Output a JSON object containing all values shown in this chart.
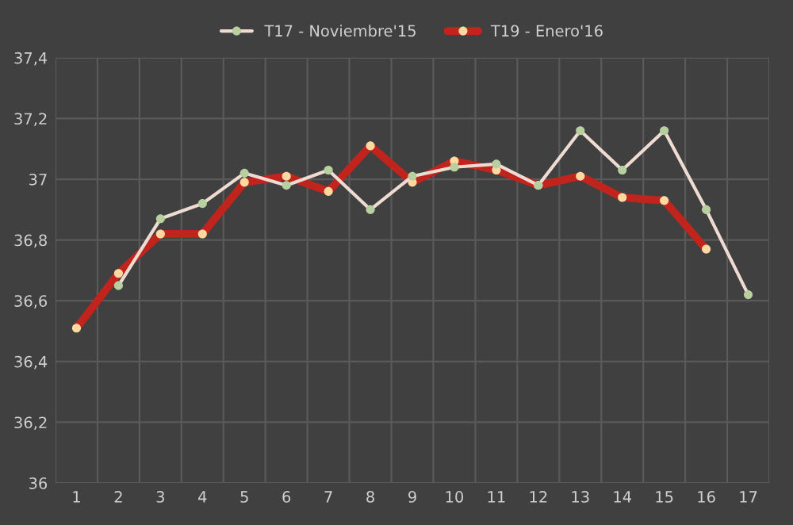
{
  "chart_data": {
    "type": "line",
    "categories": [
      "1",
      "2",
      "3",
      "4",
      "5",
      "6",
      "7",
      "8",
      "9",
      "10",
      "11",
      "12",
      "13",
      "14",
      "15",
      "16",
      "17"
    ],
    "series": [
      {
        "name": "T17 - Noviembre'15",
        "color": "#eedcd2",
        "values": [
          null,
          36.65,
          36.87,
          36.92,
          37.02,
          36.98,
          37.03,
          36.9,
          37.01,
          37.04,
          37.05,
          36.98,
          37.16,
          37.03,
          37.16,
          36.9,
          36.62
        ]
      },
      {
        "name": "T19 - Enero'16",
        "color": "#c0241c",
        "values": [
          36.51,
          36.69,
          36.82,
          36.82,
          36.99,
          37.01,
          36.96,
          37.11,
          36.99,
          37.06,
          37.03,
          36.98,
          37.01,
          36.94,
          36.93,
          36.77,
          null
        ]
      }
    ],
    "ylim": [
      36,
      37.4
    ],
    "yticks": [
      {
        "value": 36,
        "label": "36"
      },
      {
        "value": 36.2,
        "label": "36,2"
      },
      {
        "value": 36.4,
        "label": "36,4"
      },
      {
        "value": 36.6,
        "label": "36,6"
      },
      {
        "value": 36.8,
        "label": "36,8"
      },
      {
        "value": 37,
        "label": "37"
      },
      {
        "value": 37.2,
        "label": "37,2"
      },
      {
        "value": 37.4,
        "label": "37,4"
      }
    ],
    "grid": true,
    "legend": "top",
    "marker": "circle",
    "line_style": "solid"
  }
}
